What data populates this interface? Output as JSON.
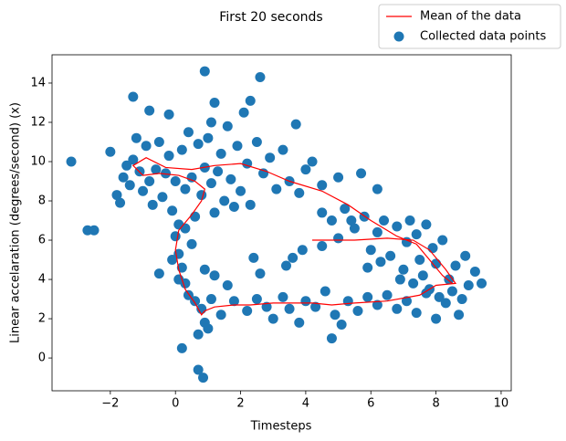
{
  "chart_data": {
    "type": "scatter",
    "title": "First 20 seconds",
    "xlabel": "Timesteps",
    "ylabel": "Linear accelaration (degrees/second) (x)",
    "xlim": [
      -3.79,
      10.31
    ],
    "ylim": [
      -1.67,
      15.44
    ],
    "xticks": [
      {
        "value": -2,
        "label": "−2"
      },
      0,
      2,
      4,
      6,
      8,
      10
    ],
    "yticks": [
      0,
      2,
      4,
      6,
      8,
      10,
      12,
      14
    ],
    "legend": "upper right",
    "series": [
      {
        "name": "Mean of the data",
        "type": "line",
        "color": "#ff0000",
        "x": [
          4.2,
          5.5,
          6.5,
          7.3,
          7.8,
          8.3,
          8.6,
          8.0,
          7.5,
          6.5,
          5.5,
          4.8,
          4.2,
          3.0,
          2.3,
          1.8,
          1.2,
          0.9,
          0.8,
          0.6,
          0.3,
          0.1,
          0.0,
          0.1,
          0.5,
          0.8,
          0.9,
          0.6,
          0.1,
          -0.5,
          -1.0,
          -1.3,
          -0.9,
          -0.3,
          0.5,
          1.2,
          2.0,
          2.8,
          3.5,
          4.5,
          5.3,
          6.0,
          6.8,
          7.4,
          7.8,
          8.2,
          8.5
        ],
        "values": [
          6.0,
          6.0,
          6.1,
          6.0,
          5.5,
          4.5,
          3.8,
          3.7,
          3.2,
          2.9,
          2.8,
          2.7,
          2.8,
          2.8,
          2.7,
          2.7,
          2.6,
          2.4,
          2.2,
          2.8,
          3.5,
          4.5,
          5.5,
          6.5,
          7.3,
          8.0,
          8.6,
          9.0,
          9.3,
          9.4,
          9.3,
          9.8,
          10.2,
          9.7,
          9.6,
          9.8,
          9.9,
          9.5,
          9.0,
          8.5,
          7.8,
          7.0,
          6.2,
          5.8,
          5.0,
          4.2,
          3.8
        ]
      },
      {
        "name": "Collected data points",
        "type": "scatter",
        "color": "#1f77b4",
        "x": [
          -3.2,
          -2.7,
          -2.5,
          0.9,
          2.6,
          -1.3,
          0.7,
          0.85,
          0.2,
          4.8,
          3.7,
          2.3,
          1.2,
          -0.8,
          -0.2,
          1.1,
          -2,
          -1.8,
          -1.7,
          -1.6,
          -1.5,
          -1.4,
          -1.3,
          -1.2,
          -1.1,
          -1.0,
          -0.9,
          -0.8,
          -0.7,
          -0.6,
          -0.5,
          -0.4,
          -0.3,
          -0.2,
          -0.1,
          0.0,
          0.1,
          0.2,
          0.3,
          0.4,
          0.5,
          0.6,
          0.7,
          0.8,
          0.9,
          1.0,
          1.1,
          1.2,
          1.3,
          1.4,
          1.5,
          1.6,
          1.7,
          1.8,
          1.9,
          2.0,
          2.1,
          2.2,
          2.3,
          2.5,
          2.7,
          2.9,
          3.1,
          3.3,
          3.5,
          3.8,
          4.0,
          4.2,
          4.5,
          0.0,
          0.1,
          0.2,
          -0.1,
          -0.5,
          0.3,
          0.4,
          0.1,
          0.5,
          0.3,
          0.6,
          0.9,
          0.7,
          0.8,
          1.0,
          1.1,
          0.9,
          1.2,
          1.4,
          1.6,
          1.8,
          2.2,
          2.5,
          2.8,
          3.0,
          3.3,
          3.5,
          3.8,
          4.0,
          4.3,
          4.6,
          4.9,
          5.1,
          5.3,
          5.6,
          5.9,
          6.2,
          6.5,
          6.8,
          7.1,
          7.4,
          7.7,
          8.0,
          8.3,
          8.7,
          2.4,
          2.6,
          3.4,
          3.6,
          3.9,
          4.5,
          5.0,
          5.4,
          5.0,
          5.7,
          6.2,
          4.5,
          4.8,
          5.2,
          5.5,
          5.8,
          6.0,
          6.2,
          6.4,
          6.6,
          6.8,
          7.0,
          7.1,
          7.2,
          7.3,
          7.4,
          7.5,
          7.6,
          7.7,
          7.8,
          7.9,
          8.0,
          8.1,
          8.2,
          8.4,
          8.5,
          8.6,
          8.8,
          8.9,
          9.0,
          9.2,
          9.4,
          6.9,
          6.3,
          5.9
        ],
        "values": [
          10.0,
          6.5,
          6.5,
          14.6,
          14.3,
          13.3,
          -0.6,
          -1.0,
          0.5,
          1.0,
          11.9,
          13.1,
          13.0,
          12.6,
          12.4,
          12.0,
          10.5,
          8.3,
          7.9,
          9.2,
          9.8,
          8.8,
          10.1,
          11.2,
          9.5,
          8.5,
          10.8,
          9.0,
          7.8,
          9.6,
          11.0,
          8.2,
          9.4,
          10.3,
          7.5,
          9.0,
          6.8,
          10.6,
          8.6,
          11.5,
          9.2,
          7.2,
          10.9,
          8.3,
          9.7,
          11.2,
          8.9,
          7.4,
          9.5,
          10.4,
          8.0,
          11.8,
          9.1,
          7.7,
          10.8,
          8.5,
          12.5,
          9.9,
          7.8,
          11.0,
          9.4,
          10.2,
          8.6,
          10.6,
          9.0,
          8.4,
          9.6,
          10.0,
          8.8,
          6.2,
          5.3,
          4.6,
          5.0,
          4.3,
          3.8,
          3.2,
          4.0,
          5.8,
          6.6,
          2.9,
          1.8,
          1.2,
          2.5,
          1.5,
          3.0,
          4.5,
          4.2,
          2.2,
          3.7,
          2.9,
          2.4,
          3.0,
          2.6,
          2.0,
          3.1,
          2.5,
          1.8,
          2.9,
          2.6,
          3.4,
          2.2,
          1.7,
          2.9,
          2.4,
          3.1,
          2.7,
          3.2,
          2.5,
          2.9,
          2.3,
          3.3,
          2.0,
          2.8,
          2.2,
          5.1,
          4.3,
          4.7,
          5.1,
          5.5,
          5.7,
          6.1,
          7.0,
          9.2,
          9.4,
          8.6,
          7.4,
          7.0,
          7.6,
          6.6,
          7.2,
          5.5,
          6.4,
          7.0,
          5.2,
          6.7,
          4.5,
          5.9,
          7.0,
          3.8,
          6.3,
          5.0,
          4.2,
          6.8,
          3.5,
          5.6,
          4.8,
          3.1,
          6.0,
          4.0,
          3.4,
          4.7,
          3.0,
          5.2,
          3.7,
          4.4,
          3.8,
          4.0,
          4.9,
          4.6
        ]
      }
    ]
  }
}
